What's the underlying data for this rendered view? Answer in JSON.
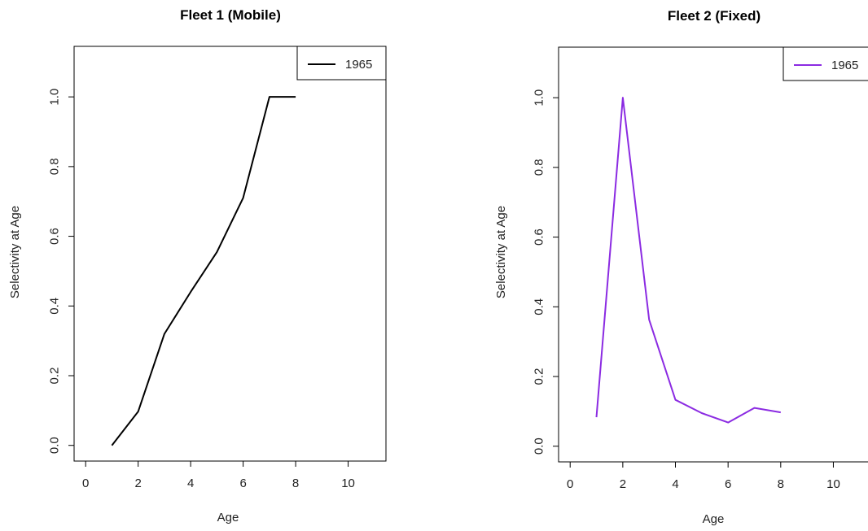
{
  "chart_data": [
    {
      "type": "line",
      "title": "Fleet 1 (Mobile)",
      "xlabel": "Age",
      "ylabel": "Selectivity at Age",
      "xlim": [
        -0.44,
        11.44
      ],
      "ylim": [
        -0.045,
        1.145
      ],
      "xticks": [
        0,
        2,
        4,
        6,
        8,
        10
      ],
      "yticks": [
        0.0,
        0.2,
        0.4,
        0.6,
        0.8,
        1.0
      ],
      "xtick_labels": [
        "0",
        "2",
        "4",
        "6",
        "8",
        "10"
      ],
      "ytick_labels": [
        "0.0",
        "0.2",
        "0.4",
        "0.6",
        "0.8",
        "1.0"
      ],
      "grid": false,
      "legend_position": "top-right",
      "series": [
        {
          "name": "1965",
          "color": "#000000",
          "x": [
            1,
            2,
            3,
            4,
            5,
            6,
            7,
            8
          ],
          "y": [
            0.0,
            0.097,
            0.32,
            0.44,
            0.555,
            0.71,
            1.0,
            1.0
          ]
        }
      ]
    },
    {
      "type": "line",
      "title": "Fleet 2 (Fixed)",
      "xlabel": "Age",
      "ylabel": "Selectivity at Age",
      "xlim": [
        -0.44,
        11.44
      ],
      "ylim": [
        -0.045,
        1.145
      ],
      "xticks": [
        0,
        2,
        4,
        6,
        8,
        10
      ],
      "yticks": [
        0.0,
        0.2,
        0.4,
        0.6,
        0.8,
        1.0
      ],
      "xtick_labels": [
        "0",
        "2",
        "4",
        "6",
        "8",
        "10"
      ],
      "ytick_labels": [
        "0.0",
        "0.2",
        "0.4",
        "0.6",
        "0.8",
        "1.0"
      ],
      "grid": false,
      "legend_position": "top-right",
      "series": [
        {
          "name": "1965",
          "color": "#8B2BE2",
          "x": [
            1,
            2,
            3,
            4,
            5,
            6,
            7,
            8
          ],
          "y": [
            0.083,
            1.0,
            0.363,
            0.133,
            0.095,
            0.068,
            0.11,
            0.097
          ]
        }
      ]
    }
  ]
}
